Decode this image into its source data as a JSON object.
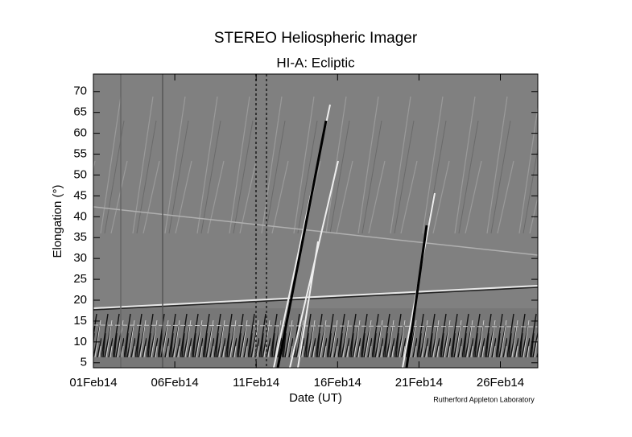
{
  "chart_data": {
    "type": "jmap",
    "title": "STEREO Heliospheric Imager",
    "subtitle": "HI-A: Ecliptic",
    "xlabel": "Date (UT)",
    "ylabel": "Elongation (°)",
    "credit": "Rutherford Appleton Laboratory",
    "xlim": [
      0,
      27.3
    ],
    "xticks": [
      {
        "value": 0,
        "label": "01Feb14"
      },
      {
        "value": 5,
        "label": "06Feb14"
      },
      {
        "value": 10,
        "label": "11Feb14"
      },
      {
        "value": 15,
        "label": "16Feb14"
      },
      {
        "value": 20,
        "label": "21Feb14"
      },
      {
        "value": 25,
        "label": "26Feb14"
      }
    ],
    "ylim": [
      3.8,
      74.2
    ],
    "yticks": [
      5,
      10,
      15,
      20,
      25,
      30,
      35,
      40,
      45,
      50,
      55,
      60,
      65,
      70
    ]
  }
}
